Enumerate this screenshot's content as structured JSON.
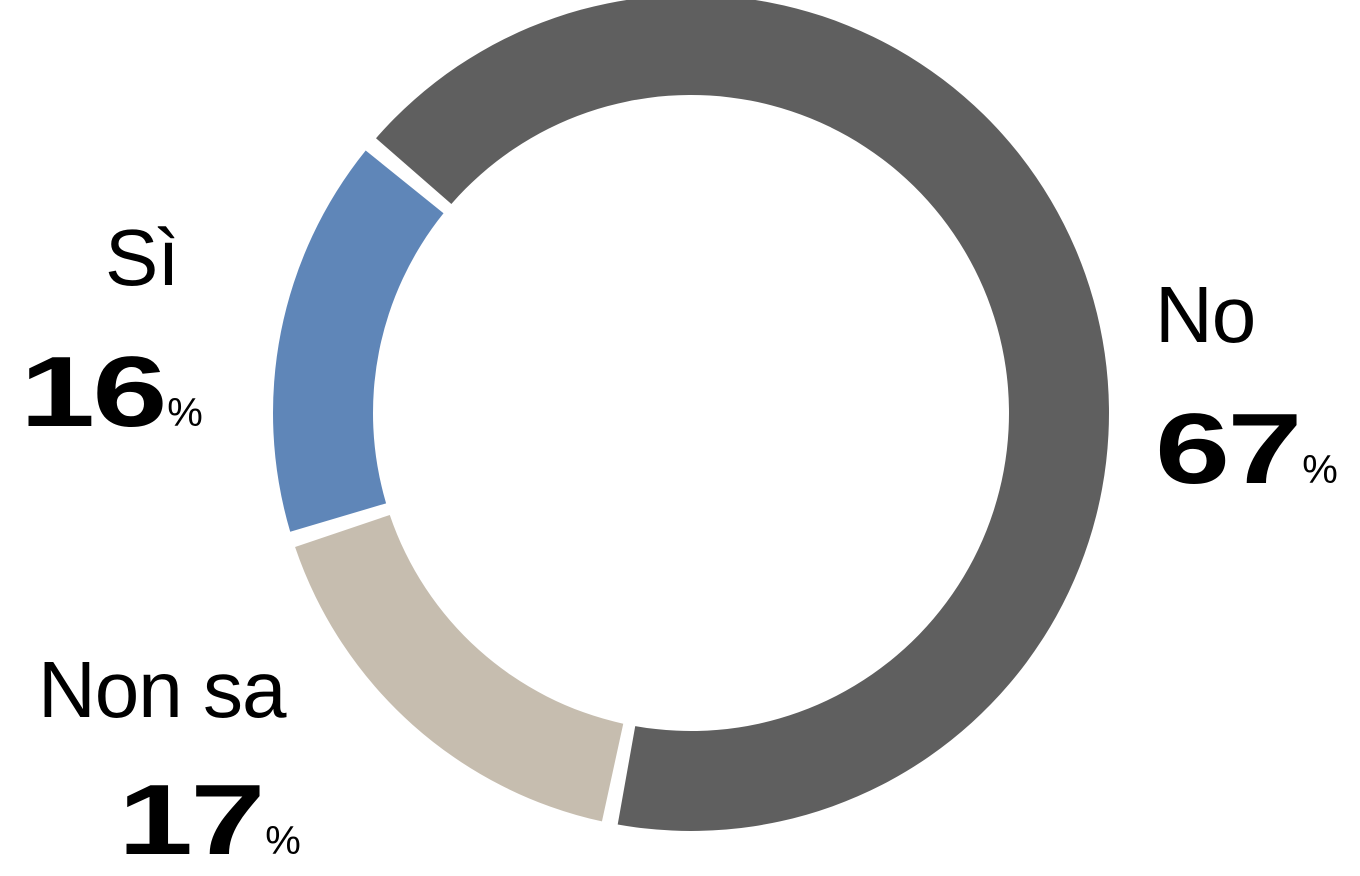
{
  "chart_data": {
    "type": "pie",
    "style": "donut",
    "categories": [
      "No",
      "Non sa",
      "Sì"
    ],
    "values": [
      67,
      17,
      16
    ],
    "colors": [
      "#5f5f5f",
      "#c6bdaf",
      "#5f86b8"
    ],
    "value_suffix": "%",
    "title": "",
    "legend": "none"
  }
}
